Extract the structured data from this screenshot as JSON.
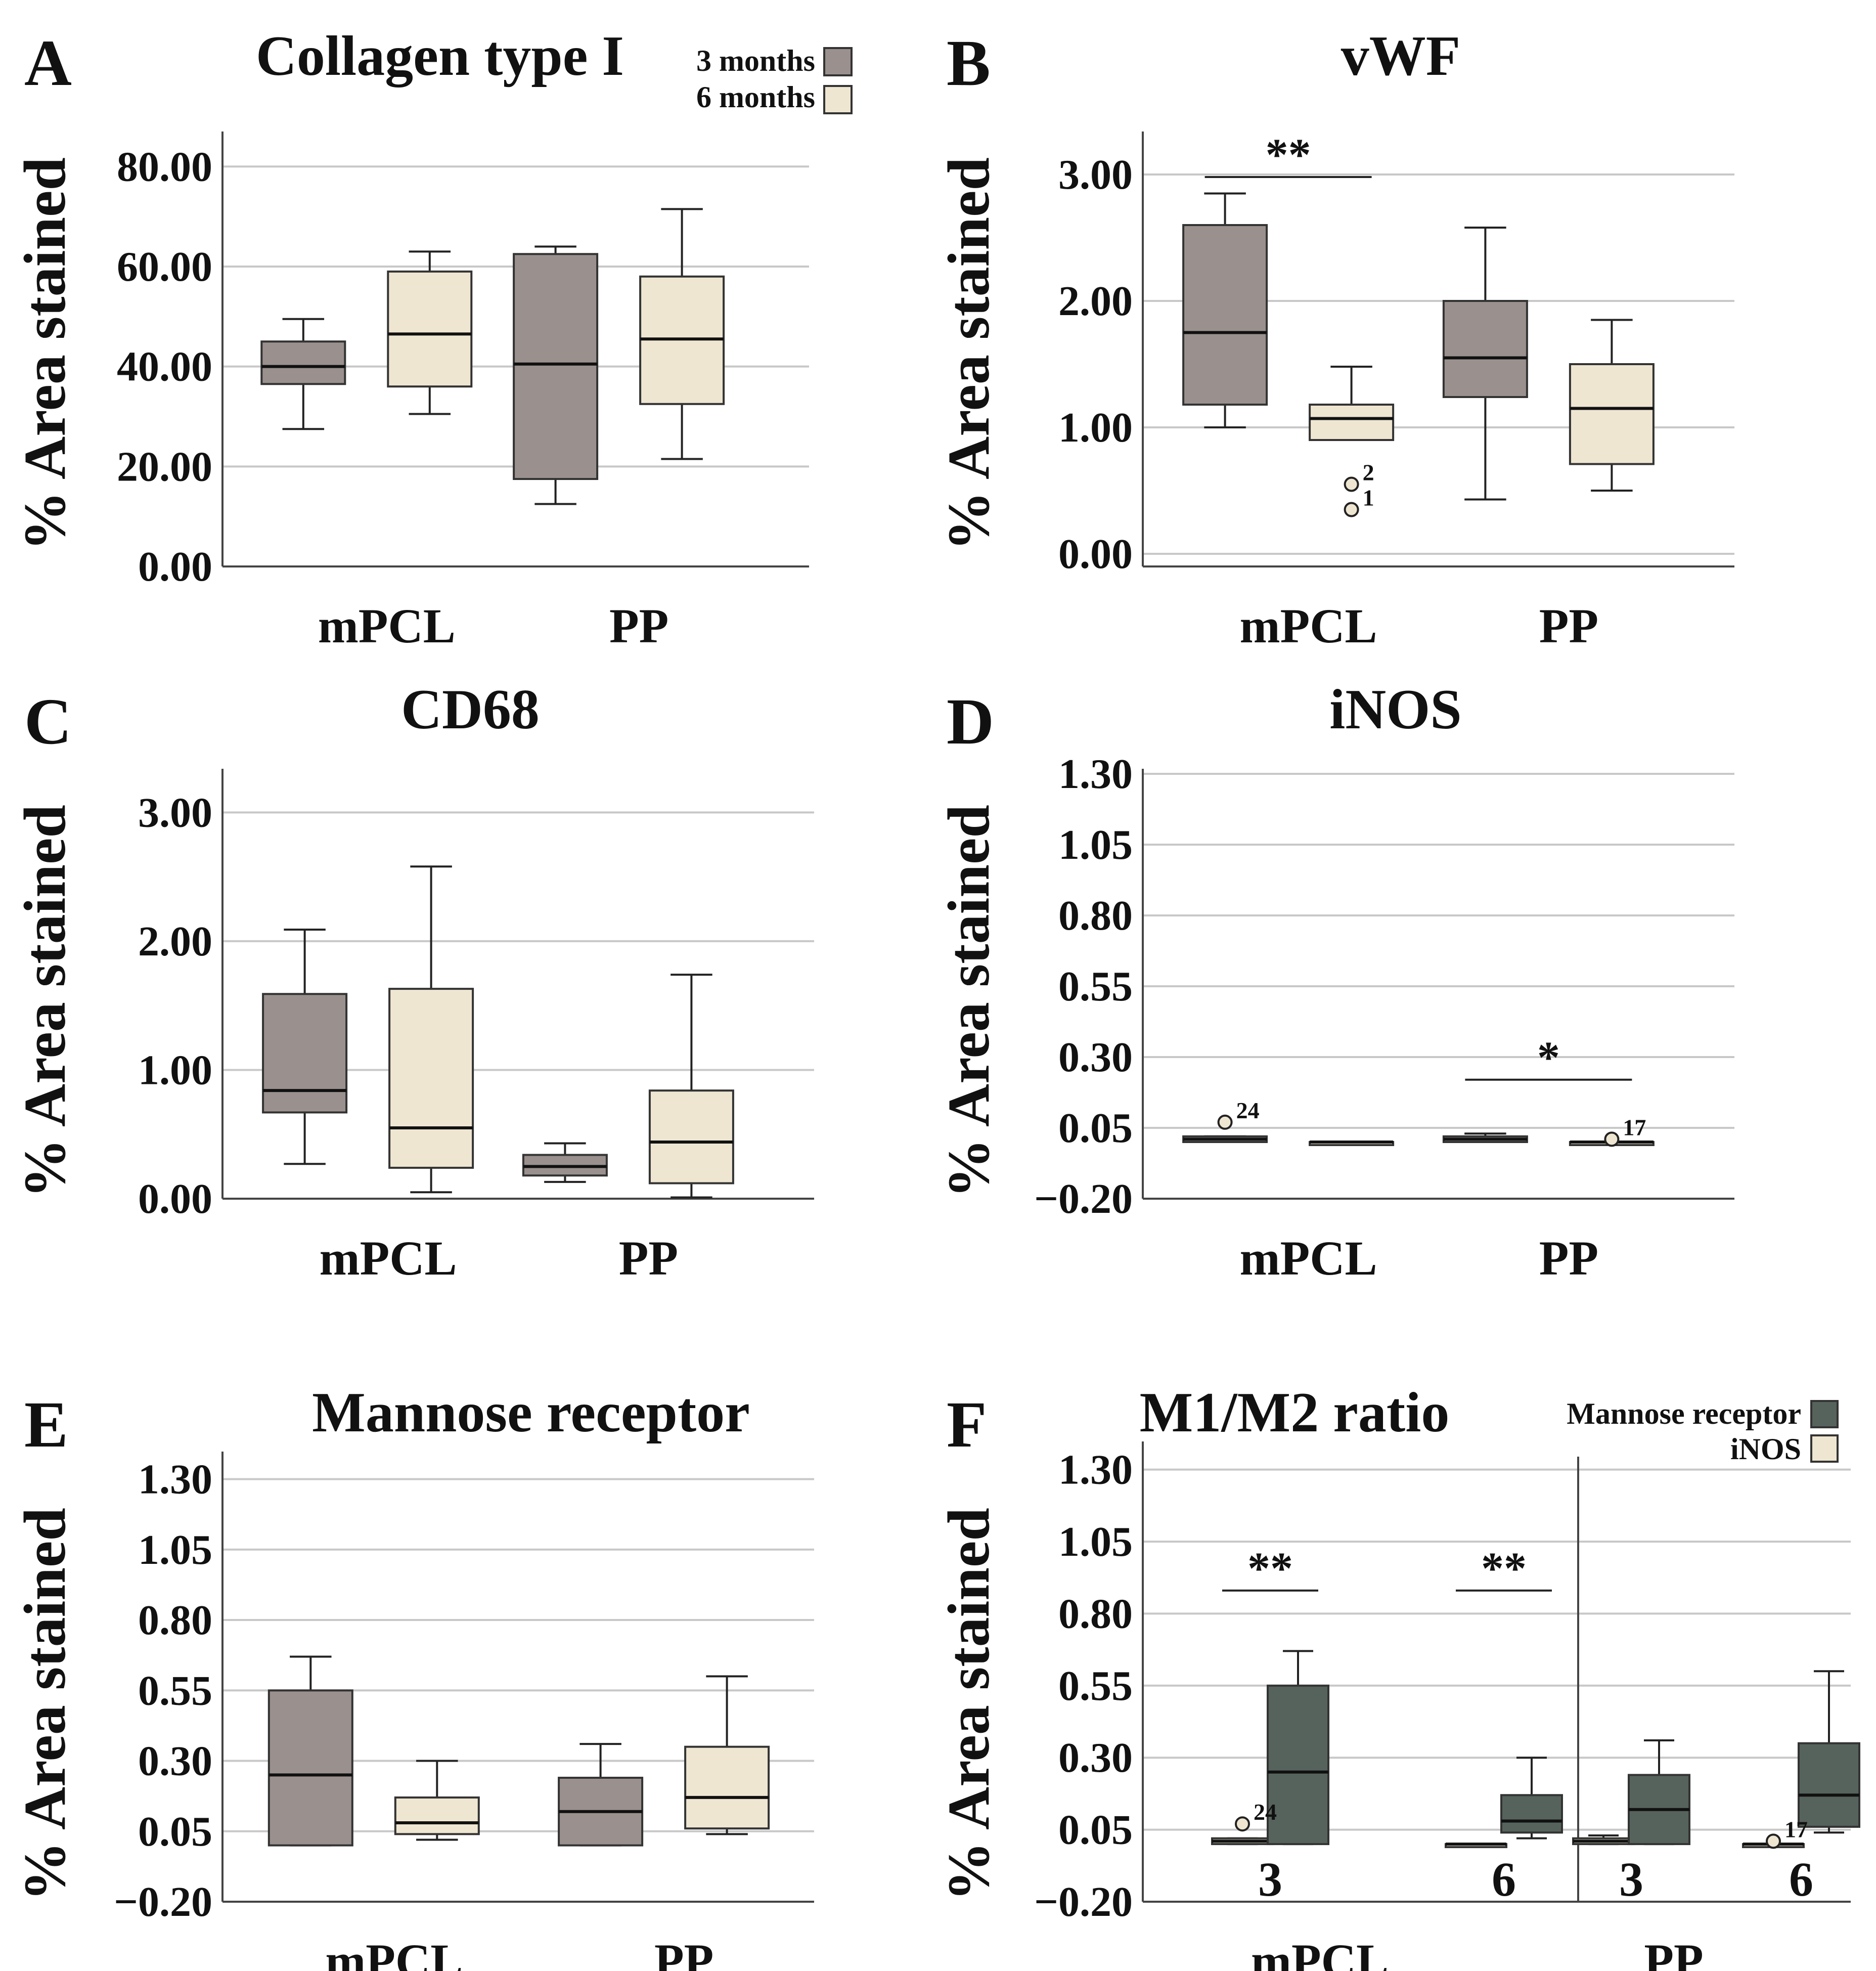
{
  "figure": {
    "legend_ab": {
      "items": [
        {
          "label": "3 months",
          "color": "#9a918e"
        },
        {
          "label": "6 months",
          "color": "#efe6d2"
        }
      ]
    },
    "legend_f": {
      "items": [
        {
          "label": "Mannose receptor",
          "color": "#56635c"
        },
        {
          "label": "iNOS",
          "color": "#efe6d2"
        }
      ]
    },
    "colors": {
      "grey": "#9a918e",
      "cream": "#efe6d2",
      "darkgreen": "#56635c",
      "grid": "#c8c8c8",
      "axis": "#444444"
    }
  },
  "chart_data": [
    {
      "id": "A",
      "panel_letter": "A",
      "type": "box",
      "title": "Collagen type I",
      "ylabel": "% Area stained",
      "ylim": [
        0,
        86
      ],
      "yticks": [
        0,
        20,
        40,
        60,
        80
      ],
      "yticklabels": [
        "0.00",
        "20.00",
        "40.00",
        "60.00",
        "80.00"
      ],
      "groups": [
        {
          "label": "mPCL",
          "center": 0.28
        },
        {
          "label": "PP",
          "center": 0.71
        }
      ],
      "boxes": [
        {
          "group": "mPCL",
          "series": "3 months",
          "color": "grey",
          "min": 27.5,
          "q1": 36.5,
          "median": 40,
          "q3": 45,
          "max": 49.5
        },
        {
          "group": "mPCL",
          "series": "6 months",
          "color": "cream",
          "min": 30.5,
          "q1": 36,
          "median": 46.5,
          "q3": 59,
          "max": 63
        },
        {
          "group": "PP",
          "series": "3 months",
          "color": "grey",
          "min": 12.5,
          "q1": 17.5,
          "median": 40.5,
          "q3": 62.5,
          "max": 64
        },
        {
          "group": "PP",
          "series": "6 months",
          "color": "cream",
          "min": 21.5,
          "q1": 32.5,
          "median": 45.5,
          "q3": 58,
          "max": 71.5
        }
      ],
      "outliers": [],
      "significance": []
    },
    {
      "id": "B",
      "panel_letter": "B",
      "type": "box",
      "title": "vWF",
      "ylabel": "% Area stained",
      "ylim": [
        -0.1,
        3.3
      ],
      "yticks": [
        0,
        1,
        2,
        3
      ],
      "yticklabels": [
        "0.00",
        "1.00",
        "2.00",
        "3.00"
      ],
      "groups": [
        {
          "label": "mPCL",
          "center": 0.28
        },
        {
          "label": "PP",
          "center": 0.72
        }
      ],
      "boxes": [
        {
          "group": "mPCL",
          "series": "3 months",
          "color": "grey",
          "min": 1.0,
          "q1": 1.18,
          "median": 1.75,
          "q3": 2.6,
          "max": 2.85
        },
        {
          "group": "mPCL",
          "series": "6 months",
          "color": "cream",
          "min": 0.9,
          "q1": 0.9,
          "median": 1.07,
          "q3": 1.18,
          "max": 1.48
        },
        {
          "group": "PP",
          "series": "3 months",
          "color": "grey",
          "min": 0.43,
          "q1": 1.24,
          "median": 1.55,
          "q3": 2.0,
          "max": 2.58
        },
        {
          "group": "PP",
          "series": "6 months",
          "color": "cream",
          "min": 0.5,
          "q1": 0.71,
          "median": 1.15,
          "q3": 1.5,
          "max": 1.85
        }
      ],
      "outliers": [
        {
          "box": 1,
          "value": 0.55,
          "label": "2"
        },
        {
          "box": 1,
          "value": 0.35,
          "label": "1"
        }
      ],
      "significance": [
        {
          "from_box": 0,
          "to_box": 1,
          "y": 2.98,
          "label": "**"
        }
      ]
    },
    {
      "id": "C",
      "panel_letter": "C",
      "type": "box",
      "title": "CD68",
      "ylabel": "% Area stained",
      "ylim": [
        0,
        3.3
      ],
      "yticks": [
        0,
        1,
        2,
        3
      ],
      "yticklabels": [
        "0.00",
        "1.00",
        "2.00",
        "3.00"
      ],
      "groups": [
        {
          "label": "mPCL",
          "center": 0.28
        },
        {
          "label": "PP",
          "center": 0.72
        }
      ],
      "boxes": [
        {
          "group": "mPCL",
          "series": "3 months",
          "color": "grey",
          "min": 0.27,
          "q1": 0.67,
          "median": 0.84,
          "q3": 1.59,
          "max": 2.09
        },
        {
          "group": "mPCL",
          "series": "6 months",
          "color": "cream",
          "min": 0.05,
          "q1": 0.24,
          "median": 0.55,
          "q3": 1.63,
          "max": 2.58
        },
        {
          "group": "PP",
          "series": "3 months",
          "color": "grey",
          "min": 0.13,
          "q1": 0.18,
          "median": 0.25,
          "q3": 0.34,
          "max": 0.43
        },
        {
          "group": "PP",
          "series": "6 months",
          "color": "cream",
          "min": 0.01,
          "q1": 0.12,
          "median": 0.44,
          "q3": 0.84,
          "max": 1.74
        }
      ],
      "outliers": [],
      "significance": []
    },
    {
      "id": "D",
      "panel_letter": "D",
      "type": "box",
      "title": "iNOS",
      "ylabel": "% Area stained",
      "ylim": [
        -0.2,
        1.3
      ],
      "yticks": [
        -0.2,
        0.05,
        0.3,
        0.55,
        0.8,
        1.05,
        1.3
      ],
      "yticklabels": [
        "−0.20",
        "0.05",
        "0.30",
        "0.55",
        "0.80",
        "1.05",
        "1.30"
      ],
      "groups": [
        {
          "label": "mPCL",
          "center": 0.28
        },
        {
          "label": "PP",
          "center": 0.72
        }
      ],
      "boxes": [
        {
          "group": "mPCL",
          "series": "3 months",
          "color": "grey",
          "min": 0.0,
          "q1": 0.0,
          "median": 0.01,
          "q3": 0.02,
          "max": 0.02
        },
        {
          "group": "mPCL",
          "series": "6 months",
          "color": "cream",
          "min": 0.0,
          "q1": 0.0,
          "median": 0.0,
          "q3": 0.0,
          "max": 0.0
        },
        {
          "group": "PP",
          "series": "3 months",
          "color": "grey",
          "min": 0.0,
          "q1": 0.0,
          "median": 0.01,
          "q3": 0.02,
          "max": 0.03
        },
        {
          "group": "PP",
          "series": "6 months",
          "color": "cream",
          "min": 0.0,
          "q1": 0.0,
          "median": 0.0,
          "q3": 0.0,
          "max": 0.0
        }
      ],
      "outliers": [
        {
          "box": 0,
          "value": 0.07,
          "label": "24"
        },
        {
          "box": 3,
          "value": 0.01,
          "label": "17"
        }
      ],
      "significance": [
        {
          "from_box": 2,
          "to_box": 3,
          "y": 0.22,
          "label": "*"
        }
      ]
    },
    {
      "id": "E",
      "panel_letter": "E",
      "type": "box",
      "title": "Mannose receptor",
      "ylabel": "% Area stained",
      "ylim": [
        -0.2,
        1.38
      ],
      "yticks": [
        -0.2,
        0.05,
        0.3,
        0.55,
        0.8,
        1.05,
        1.3
      ],
      "yticklabels": [
        "−0.20",
        "0.05",
        "0.30",
        "0.55",
        "0.80",
        "1.05",
        "1.30"
      ],
      "groups": [
        {
          "label": "mPCL",
          "center": 0.29
        },
        {
          "label": "PP",
          "center": 0.78
        }
      ],
      "boxes": [
        {
          "group": "mPCL",
          "series": "3 months",
          "color": "grey",
          "min": 0.0,
          "q1": 0.0,
          "median": 0.25,
          "q3": 0.55,
          "max": 0.67
        },
        {
          "group": "mPCL",
          "series": "6 months",
          "color": "cream",
          "min": 0.02,
          "q1": 0.04,
          "median": 0.08,
          "q3": 0.17,
          "max": 0.3
        },
        {
          "group": "PP",
          "series": "3 months",
          "color": "grey",
          "min": 0.0,
          "q1": 0.0,
          "median": 0.12,
          "q3": 0.24,
          "max": 0.36
        },
        {
          "group": "PP",
          "series": "6 months",
          "color": "cream",
          "min": 0.04,
          "q1": 0.06,
          "median": 0.17,
          "q3": 0.35,
          "max": 0.6
        }
      ],
      "outliers": [],
      "significance": []
    },
    {
      "id": "F",
      "panel_letter": "F",
      "type": "box",
      "title": "M1/M2 ratio",
      "ylabel": "% Area stained",
      "ylim": [
        -0.2,
        1.38
      ],
      "yticks": [
        -0.2,
        0.05,
        0.3,
        0.55,
        0.8,
        1.05,
        1.3
      ],
      "yticklabels": [
        "−0.20",
        "0.05",
        "0.30",
        "0.55",
        "0.80",
        "1.05",
        "1.30"
      ],
      "groups": [
        {
          "label": "mPCL",
          "center": 0.25
        },
        {
          "label": "PP",
          "center": 0.75
        }
      ],
      "subgroups": [
        {
          "label": "3",
          "center": 0.18
        },
        {
          "label": "6",
          "center": 0.51
        },
        {
          "label": "3",
          "center": 0.69
        },
        {
          "label": "6",
          "center": 0.93
        }
      ],
      "divider": 0.615,
      "boxes": [
        {
          "group": "mPCL-3",
          "series": "iNOS",
          "color": "cream",
          "min": 0.0,
          "q1": 0.0,
          "median": 0.01,
          "q3": 0.02,
          "max": 0.02
        },
        {
          "group": "mPCL-3",
          "series": "Mannose receptor",
          "color": "darkgreen",
          "min": 0.0,
          "q1": 0.0,
          "median": 0.25,
          "q3": 0.55,
          "max": 0.67
        },
        {
          "group": "mPCL-6",
          "series": "iNOS",
          "color": "cream",
          "min": 0.0,
          "q1": 0.0,
          "median": 0.0,
          "q3": 0.0,
          "max": 0.0
        },
        {
          "group": "mPCL-6",
          "series": "Mannose receptor",
          "color": "darkgreen",
          "min": 0.02,
          "q1": 0.04,
          "median": 0.08,
          "q3": 0.17,
          "max": 0.3
        },
        {
          "group": "PP-3",
          "series": "iNOS",
          "color": "cream",
          "min": 0.0,
          "q1": 0.0,
          "median": 0.01,
          "q3": 0.02,
          "max": 0.03
        },
        {
          "group": "PP-3",
          "series": "Mannose receptor",
          "color": "darkgreen",
          "min": 0.0,
          "q1": 0.0,
          "median": 0.12,
          "q3": 0.24,
          "max": 0.36
        },
        {
          "group": "PP-6",
          "series": "iNOS",
          "color": "cream",
          "min": 0.0,
          "q1": 0.0,
          "median": 0.0,
          "q3": 0.0,
          "max": 0.0
        },
        {
          "group": "PP-6",
          "series": "Mannose receptor",
          "color": "darkgreen",
          "min": 0.04,
          "q1": 0.06,
          "median": 0.17,
          "q3": 0.35,
          "max": 0.6
        }
      ],
      "outliers": [
        {
          "box": 0,
          "value": 0.07,
          "label": "24"
        },
        {
          "box": 6,
          "value": 0.01,
          "label": "17"
        }
      ],
      "significance": [
        {
          "from_box": 0,
          "to_box": 1,
          "y": 0.88,
          "label": "**"
        },
        {
          "from_box": 2,
          "to_box": 3,
          "y": 0.88,
          "label": "**"
        }
      ]
    }
  ]
}
